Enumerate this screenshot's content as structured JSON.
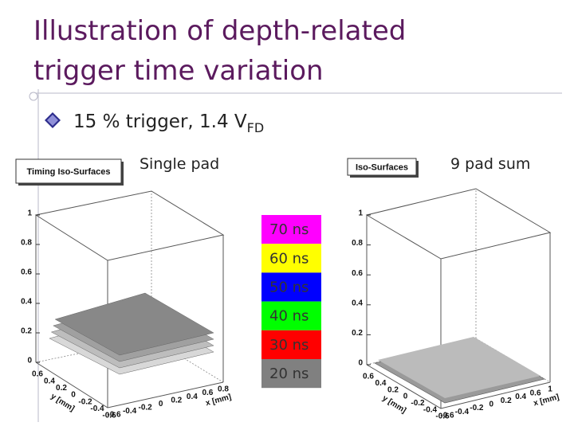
{
  "title": [
    "Illustration of depth-related",
    "trigger time variation"
  ],
  "bullet": {
    "text": "15 % trigger, 1.4 V",
    "subscript": "FD"
  },
  "panels": [
    {
      "label": "Single pad",
      "plot_title": "Timing Iso-Surfaces",
      "z_ticks": [
        "0",
        "0.2",
        "0.4",
        "0.6",
        "0.8",
        "1"
      ],
      "y_ticks": [
        "0.6",
        "0.4",
        "0.2",
        "0",
        "-0.2",
        "-0.4",
        "-0.6"
      ],
      "x_ticks": [
        "-0.6",
        "-0.4",
        "-0.2",
        "0",
        "0.2",
        "0.4",
        "0.6",
        "0.8"
      ],
      "y_axis_label": "y [mm]",
      "x_axis_label": "x [mm]"
    },
    {
      "label": "9 pad sum",
      "plot_title": "Iso-Surfaces",
      "z_ticks": [
        "0",
        "0.2",
        "0.4",
        "0.6",
        "0.8",
        "1"
      ],
      "y_ticks": [
        "0.6",
        "0.4",
        "0.2",
        "0",
        "-0.2",
        "-0.4",
        "-0.6"
      ],
      "x_ticks": [
        "-0.6",
        "-0.4",
        "-0.2",
        "0",
        "0.2",
        "0.4",
        "0.6",
        "1"
      ],
      "y_axis_label": "y [mm]",
      "x_axis_label": "x [mm]"
    }
  ],
  "legend": [
    {
      "label": "70 ns",
      "color": "#ff00ff"
    },
    {
      "label": "60 ns",
      "color": "#ffff00"
    },
    {
      "label": "50 ns",
      "color": "#0000ff"
    },
    {
      "label": "40 ns",
      "color": "#00ff00"
    },
    {
      "label": "30 ns",
      "color": "#ff0000"
    },
    {
      "label": "20 ns",
      "color": "#808080"
    }
  ]
}
